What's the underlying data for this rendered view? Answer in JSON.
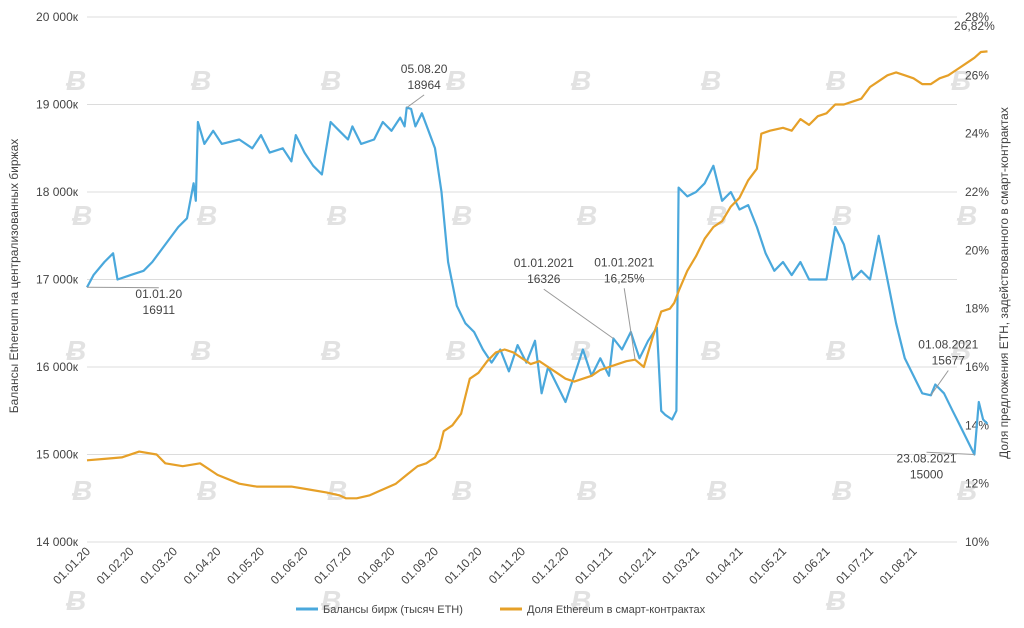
{
  "chart_data": {
    "type": "line",
    "title": "",
    "ylabel_left": "Балансы Ethereum на централизованных биржах",
    "ylabel_right": "Доля предложения ETH, задействованного в смарт-контрактах",
    "ylim_left": [
      14000,
      20000
    ],
    "ylim_right": [
      10,
      28
    ],
    "y_left_ticks": [
      "14 000к",
      "15 000к",
      "16 000к",
      "17 000к",
      "18 000к",
      "19 000к",
      "20 000к"
    ],
    "y_right_ticks": [
      "10%",
      "12%",
      "14%",
      "16%",
      "18%",
      "20%",
      "22%",
      "24%",
      "26%",
      "28%"
    ],
    "x_ticks": [
      "01.01.20",
      "01.02.20",
      "01.03.20",
      "01.04.20",
      "01.05.20",
      "01.06.20",
      "01.07.20",
      "01.08.20",
      "01.09.20",
      "01.10.20",
      "01.11.20",
      "01.12.20",
      "01.01.21",
      "01.02.21",
      "01.03.21",
      "01.04.21",
      "01.05.21",
      "01.06.21",
      "01.07.21",
      "01.08.21"
    ],
    "x_month_count": 20,
    "series": [
      {
        "name": "Балансы бирж (тысяч ETH)",
        "axis": "left",
        "color": "#4aa8dc",
        "points": [
          [
            0,
            16911
          ],
          [
            0.15,
            17050
          ],
          [
            0.4,
            17200
          ],
          [
            0.6,
            17300
          ],
          [
            0.7,
            17000
          ],
          [
            1.0,
            17050
          ],
          [
            1.3,
            17100
          ],
          [
            1.5,
            17200
          ],
          [
            1.8,
            17400
          ],
          [
            2.1,
            17600
          ],
          [
            2.3,
            17700
          ],
          [
            2.45,
            18100
          ],
          [
            2.5,
            17900
          ],
          [
            2.55,
            18800
          ],
          [
            2.7,
            18550
          ],
          [
            2.9,
            18700
          ],
          [
            3.1,
            18550
          ],
          [
            3.5,
            18600
          ],
          [
            3.8,
            18500
          ],
          [
            4.0,
            18650
          ],
          [
            4.2,
            18450
          ],
          [
            4.5,
            18500
          ],
          [
            4.7,
            18350
          ],
          [
            4.8,
            18650
          ],
          [
            5.0,
            18450
          ],
          [
            5.2,
            18300
          ],
          [
            5.4,
            18200
          ],
          [
            5.6,
            18800
          ],
          [
            5.8,
            18700
          ],
          [
            6.0,
            18600
          ],
          [
            6.1,
            18750
          ],
          [
            6.3,
            18550
          ],
          [
            6.6,
            18600
          ],
          [
            6.8,
            18800
          ],
          [
            7.0,
            18700
          ],
          [
            7.2,
            18850
          ],
          [
            7.3,
            18750
          ],
          [
            7.35,
            18964
          ],
          [
            7.45,
            18950
          ],
          [
            7.55,
            18750
          ],
          [
            7.7,
            18900
          ],
          [
            7.85,
            18700
          ],
          [
            8.0,
            18500
          ],
          [
            8.15,
            18000
          ],
          [
            8.3,
            17200
          ],
          [
            8.5,
            16700
          ],
          [
            8.7,
            16500
          ],
          [
            8.9,
            16400
          ],
          [
            9.1,
            16200
          ],
          [
            9.3,
            16050
          ],
          [
            9.5,
            16200
          ],
          [
            9.7,
            15950
          ],
          [
            9.9,
            16250
          ],
          [
            10.1,
            16050
          ],
          [
            10.3,
            16300
          ],
          [
            10.45,
            15700
          ],
          [
            10.6,
            16000
          ],
          [
            10.8,
            15800
          ],
          [
            11.0,
            15600
          ],
          [
            11.2,
            15900
          ],
          [
            11.4,
            16200
          ],
          [
            11.6,
            15900
          ],
          [
            11.8,
            16100
          ],
          [
            12.0,
            15900
          ],
          [
            12.1,
            16326
          ],
          [
            12.3,
            16200
          ],
          [
            12.5,
            16400
          ],
          [
            12.7,
            16100
          ],
          [
            12.9,
            16300
          ],
          [
            13.1,
            16450
          ],
          [
            13.2,
            15500
          ],
          [
            13.3,
            15450
          ],
          [
            13.45,
            15400
          ],
          [
            13.55,
            15500
          ],
          [
            13.6,
            18050
          ],
          [
            13.8,
            17950
          ],
          [
            14.0,
            18000
          ],
          [
            14.2,
            18100
          ],
          [
            14.4,
            18300
          ],
          [
            14.6,
            17900
          ],
          [
            14.8,
            18000
          ],
          [
            15.0,
            17800
          ],
          [
            15.2,
            17850
          ],
          [
            15.4,
            17600
          ],
          [
            15.6,
            17300
          ],
          [
            15.8,
            17100
          ],
          [
            16.0,
            17200
          ],
          [
            16.2,
            17050
          ],
          [
            16.4,
            17200
          ],
          [
            16.6,
            17000
          ],
          [
            16.8,
            17000
          ],
          [
            17.0,
            17000
          ],
          [
            17.2,
            17600
          ],
          [
            17.4,
            17400
          ],
          [
            17.6,
            17000
          ],
          [
            17.8,
            17100
          ],
          [
            18.0,
            17000
          ],
          [
            18.2,
            17500
          ],
          [
            18.4,
            17000
          ],
          [
            18.6,
            16500
          ],
          [
            18.8,
            16100
          ],
          [
            19.0,
            15900
          ],
          [
            19.2,
            15700
          ],
          [
            19.4,
            15677
          ],
          [
            19.5,
            15800
          ],
          [
            19.7,
            15700
          ],
          [
            19.9,
            15500
          ],
          [
            20.0,
            15400
          ],
          [
            20.2,
            15200
          ],
          [
            20.35,
            15050
          ],
          [
            20.4,
            15000
          ],
          [
            20.5,
            15600
          ],
          [
            20.6,
            15400
          ],
          [
            20.7,
            15350
          ]
        ]
      },
      {
        "name": "Доля Ethereum в смарт-контрактах",
        "axis": "right",
        "color": "#e6a028",
        "points": [
          [
            0,
            12.8
          ],
          [
            0.4,
            12.85
          ],
          [
            0.8,
            12.9
          ],
          [
            1.2,
            13.1
          ],
          [
            1.6,
            13.0
          ],
          [
            1.8,
            12.7
          ],
          [
            2.2,
            12.6
          ],
          [
            2.6,
            12.7
          ],
          [
            2.9,
            12.4
          ],
          [
            3.0,
            12.3
          ],
          [
            3.5,
            12.0
          ],
          [
            3.9,
            11.9
          ],
          [
            4.3,
            11.9
          ],
          [
            4.7,
            11.9
          ],
          [
            5.1,
            11.8
          ],
          [
            5.5,
            11.7
          ],
          [
            5.8,
            11.6
          ],
          [
            5.95,
            11.5
          ],
          [
            6.2,
            11.5
          ],
          [
            6.5,
            11.6
          ],
          [
            6.8,
            11.8
          ],
          [
            7.1,
            12.0
          ],
          [
            7.35,
            12.3
          ],
          [
            7.6,
            12.6
          ],
          [
            7.8,
            12.7
          ],
          [
            8.0,
            12.9
          ],
          [
            8.1,
            13.2
          ],
          [
            8.2,
            13.8
          ],
          [
            8.4,
            14.0
          ],
          [
            8.6,
            14.4
          ],
          [
            8.7,
            15.0
          ],
          [
            8.8,
            15.6
          ],
          [
            9.0,
            15.8
          ],
          [
            9.2,
            16.2
          ],
          [
            9.4,
            16.5
          ],
          [
            9.6,
            16.6
          ],
          [
            9.8,
            16.5
          ],
          [
            10.0,
            16.3
          ],
          [
            10.2,
            16.1
          ],
          [
            10.4,
            16.2
          ],
          [
            10.6,
            16.0
          ],
          [
            10.8,
            15.8
          ],
          [
            11.0,
            15.6
          ],
          [
            11.2,
            15.5
          ],
          [
            11.4,
            15.6
          ],
          [
            11.6,
            15.7
          ],
          [
            11.8,
            15.9
          ],
          [
            12.0,
            16.0
          ],
          [
            12.2,
            16.1
          ],
          [
            12.4,
            16.2
          ],
          [
            12.6,
            16.25
          ],
          [
            12.8,
            16.0
          ],
          [
            13.0,
            17.0
          ],
          [
            13.2,
            17.9
          ],
          [
            13.4,
            18.0
          ],
          [
            13.5,
            18.2
          ],
          [
            13.6,
            18.6
          ],
          [
            13.8,
            19.3
          ],
          [
            14.0,
            19.8
          ],
          [
            14.2,
            20.4
          ],
          [
            14.4,
            20.8
          ],
          [
            14.6,
            21.0
          ],
          [
            14.8,
            21.5
          ],
          [
            15.0,
            21.8
          ],
          [
            15.2,
            22.4
          ],
          [
            15.4,
            22.8
          ],
          [
            15.5,
            24.0
          ],
          [
            15.7,
            24.1
          ],
          [
            16.0,
            24.2
          ],
          [
            16.2,
            24.1
          ],
          [
            16.4,
            24.5
          ],
          [
            16.6,
            24.3
          ],
          [
            16.8,
            24.6
          ],
          [
            17.0,
            24.7
          ],
          [
            17.2,
            25.0
          ],
          [
            17.4,
            25.0
          ],
          [
            17.6,
            25.1
          ],
          [
            17.8,
            25.2
          ],
          [
            18.0,
            25.6
          ],
          [
            18.2,
            25.8
          ],
          [
            18.4,
            26.0
          ],
          [
            18.6,
            26.1
          ],
          [
            18.8,
            26.0
          ],
          [
            19.0,
            25.9
          ],
          [
            19.2,
            25.7
          ],
          [
            19.4,
            25.7
          ],
          [
            19.6,
            25.9
          ],
          [
            19.8,
            26.0
          ],
          [
            20.0,
            26.2
          ],
          [
            20.2,
            26.4
          ],
          [
            20.4,
            26.6
          ],
          [
            20.55,
            26.8
          ],
          [
            20.7,
            26.82
          ]
        ]
      }
    ],
    "annotations": [
      {
        "series": 0,
        "x": 0,
        "y": 16911,
        "date": "01.01.20",
        "value": "16911",
        "tx": 1.65,
        "ty": 16700
      },
      {
        "series": 0,
        "x": 7.35,
        "y": 18964,
        "date": "05.08.20",
        "value": "18964",
        "tx": 7.75,
        "ty": 19270
      },
      {
        "series": 0,
        "x": 12.1,
        "y": 16326,
        "date": "01.01.2021",
        "value": "16326",
        "tx": 10.5,
        "ty": 17050
      },
      {
        "series": 1,
        "x": 12.6,
        "y": 16.25,
        "date": "01.01.2021",
        "value": "16,25%",
        "tx": 12.35,
        "ty": 17060
      },
      {
        "series": 0,
        "x": 19.4,
        "y": 15677,
        "date": "01.08.2021",
        "value": "15677",
        "tx": 19.8,
        "ty": 16120
      },
      {
        "series": 0,
        "x": 20.4,
        "y": 15000,
        "date": "23.08.2021",
        "value": "15000",
        "tx": 19.3,
        "ty": 14820
      },
      {
        "series": 1,
        "x": 20.7,
        "y": 26.82,
        "date": "",
        "value": "26,82%",
        "tx": 20.4,
        "ty": 19850
      }
    ]
  }
}
